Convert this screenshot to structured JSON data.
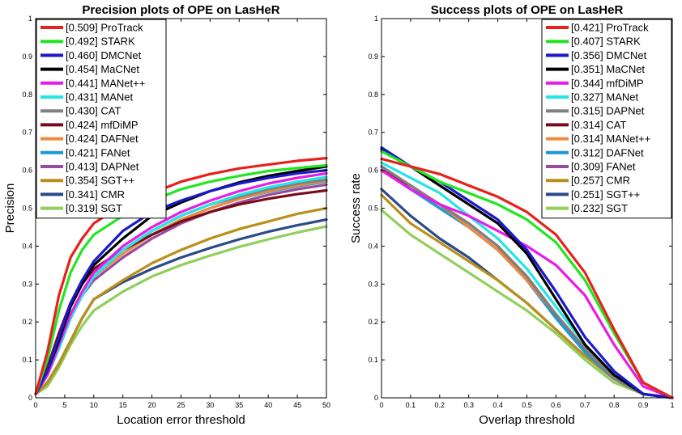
{
  "chart_data": [
    {
      "type": "line",
      "title": "Precision plots of OPE on LasHeR",
      "xlabel": "Location error threshold",
      "ylabel": "Precision",
      "xlim": [
        0,
        50
      ],
      "ylim": [
        0,
        1
      ],
      "legend_position": "top-left",
      "x_ticks": [
        "0",
        "5",
        "10",
        "15",
        "20",
        "25",
        "30",
        "35",
        "40",
        "45",
        "50"
      ],
      "y_ticks": [
        "0",
        "0.1",
        "0.2",
        "0.3",
        "0.4",
        "0.5",
        "0.6",
        "0.7",
        "0.8",
        "0.9",
        "1"
      ],
      "x": [
        0,
        2,
        4,
        6,
        8,
        10,
        15,
        20,
        25,
        30,
        35,
        40,
        45,
        50
      ],
      "series": [
        {
          "name": "[0.509] ProTrack",
          "color": "#e8211c",
          "values": [
            0.01,
            0.12,
            0.27,
            0.37,
            0.42,
            0.46,
            0.51,
            0.54,
            0.57,
            0.59,
            0.605,
            0.615,
            0.625,
            0.632
          ]
        },
        {
          "name": "[0.492] STARK",
          "color": "#22e622",
          "values": [
            0.01,
            0.1,
            0.23,
            0.33,
            0.39,
            0.43,
            0.48,
            0.52,
            0.55,
            0.57,
            0.585,
            0.598,
            0.606,
            0.613
          ]
        },
        {
          "name": "[0.460] DMCNet",
          "color": "#1a1acc",
          "values": [
            0.01,
            0.07,
            0.16,
            0.25,
            0.31,
            0.36,
            0.44,
            0.49,
            0.52,
            0.545,
            0.565,
            0.58,
            0.592,
            0.6
          ]
        },
        {
          "name": "[0.454] MaCNet",
          "color": "#000000",
          "values": [
            0.01,
            0.07,
            0.15,
            0.24,
            0.3,
            0.35,
            0.42,
            0.48,
            0.515,
            0.545,
            0.568,
            0.585,
            0.598,
            0.61
          ]
        },
        {
          "name": "[0.441] MANet++",
          "color": "#e81ce8",
          "values": [
            0.01,
            0.06,
            0.14,
            0.22,
            0.28,
            0.33,
            0.4,
            0.45,
            0.49,
            0.52,
            0.545,
            0.565,
            0.58,
            0.592
          ]
        },
        {
          "name": "[0.431] MANet",
          "color": "#22e6e6",
          "values": [
            0.01,
            0.06,
            0.13,
            0.21,
            0.27,
            0.32,
            0.39,
            0.44,
            0.48,
            0.51,
            0.535,
            0.555,
            0.57,
            0.582
          ]
        },
        {
          "name": "[0.430] CAT",
          "color": "#808080",
          "values": [
            0.01,
            0.06,
            0.13,
            0.21,
            0.27,
            0.32,
            0.39,
            0.44,
            0.48,
            0.51,
            0.53,
            0.55,
            0.565,
            0.575
          ]
        },
        {
          "name": "[0.424] mfDiMP",
          "color": "#7a0a1a",
          "values": [
            0.01,
            0.08,
            0.17,
            0.25,
            0.3,
            0.34,
            0.39,
            0.43,
            0.465,
            0.49,
            0.51,
            0.525,
            0.537,
            0.547
          ]
        },
        {
          "name": "[0.424] DAFNet",
          "color": "#f08a3c",
          "values": [
            0.01,
            0.06,
            0.13,
            0.21,
            0.27,
            0.32,
            0.38,
            0.43,
            0.47,
            0.5,
            0.525,
            0.545,
            0.56,
            0.572
          ]
        },
        {
          "name": "[0.421] FANet",
          "color": "#1a9ad6",
          "values": [
            0.01,
            0.06,
            0.13,
            0.21,
            0.27,
            0.32,
            0.38,
            0.43,
            0.47,
            0.5,
            0.525,
            0.543,
            0.558,
            0.57
          ]
        },
        {
          "name": "[0.413] DAPNet",
          "color": "#9a4a9a",
          "values": [
            0.01,
            0.06,
            0.13,
            0.21,
            0.27,
            0.31,
            0.37,
            0.42,
            0.46,
            0.49,
            0.515,
            0.535,
            0.55,
            0.562
          ]
        },
        {
          "name": "[0.354] SGT++",
          "color": "#b8901a",
          "values": [
            0.01,
            0.04,
            0.09,
            0.15,
            0.21,
            0.26,
            0.31,
            0.355,
            0.39,
            0.42,
            0.445,
            0.465,
            0.485,
            0.5
          ]
        },
        {
          "name": "[0.341] CMR",
          "color": "#2a4a8a",
          "values": [
            0.01,
            0.04,
            0.09,
            0.15,
            0.21,
            0.26,
            0.305,
            0.34,
            0.37,
            0.395,
            0.418,
            0.438,
            0.455,
            0.47
          ]
        },
        {
          "name": "[0.319] SGT",
          "color": "#8fcf5a",
          "values": [
            0.01,
            0.03,
            0.08,
            0.14,
            0.19,
            0.23,
            0.28,
            0.32,
            0.35,
            0.375,
            0.398,
            0.418,
            0.436,
            0.452
          ]
        }
      ]
    },
    {
      "type": "line",
      "title": "Success plots of OPE on LasHeR",
      "xlabel": "Overlap threshold",
      "ylabel": "Success rate",
      "xlim": [
        0,
        1
      ],
      "ylim": [
        0,
        1
      ],
      "legend_position": "top-right",
      "x_ticks": [
        "0",
        "0.1",
        "0.2",
        "0.3",
        "0.4",
        "0.5",
        "0.6",
        "0.7",
        "0.8",
        "0.9",
        "1"
      ],
      "y_ticks": [
        "0",
        "0.1",
        "0.2",
        "0.3",
        "0.4",
        "0.5",
        "0.6",
        "0.7",
        "0.8",
        "0.9",
        "1"
      ],
      "x": [
        0,
        0.1,
        0.2,
        0.3,
        0.4,
        0.5,
        0.6,
        0.7,
        0.8,
        0.9,
        1.0
      ],
      "series": [
        {
          "name": "[0.421] ProTrack",
          "color": "#e8211c",
          "values": [
            0.63,
            0.61,
            0.59,
            0.56,
            0.53,
            0.49,
            0.43,
            0.33,
            0.18,
            0.04,
            0.0
          ]
        },
        {
          "name": "[0.407] STARK",
          "color": "#22e622",
          "values": [
            0.65,
            0.61,
            0.57,
            0.54,
            0.51,
            0.47,
            0.41,
            0.31,
            0.17,
            0.04,
            0.0
          ]
        },
        {
          "name": "[0.356] DMCNet",
          "color": "#1a1acc",
          "values": [
            0.66,
            0.61,
            0.57,
            0.52,
            0.47,
            0.39,
            0.28,
            0.16,
            0.07,
            0.01,
            0.0
          ]
        },
        {
          "name": "[0.351] MaCNet",
          "color": "#000000",
          "values": [
            0.655,
            0.61,
            0.56,
            0.51,
            0.46,
            0.38,
            0.26,
            0.14,
            0.06,
            0.01,
            0.0
          ]
        },
        {
          "name": "[0.344] mfDiMP",
          "color": "#e81ce8",
          "values": [
            0.6,
            0.55,
            0.51,
            0.48,
            0.44,
            0.4,
            0.35,
            0.27,
            0.14,
            0.03,
            0.0
          ]
        },
        {
          "name": "[0.327] MANet",
          "color": "#22e6e6",
          "values": [
            0.62,
            0.58,
            0.54,
            0.48,
            0.42,
            0.34,
            0.24,
            0.14,
            0.06,
            0.01,
            0.0
          ]
        },
        {
          "name": "[0.315] DAPNet",
          "color": "#808080",
          "values": [
            0.61,
            0.56,
            0.51,
            0.46,
            0.4,
            0.32,
            0.22,
            0.13,
            0.05,
            0.01,
            0.0
          ]
        },
        {
          "name": "[0.314] CAT",
          "color": "#7a0a1a",
          "values": [
            0.6,
            0.56,
            0.51,
            0.46,
            0.4,
            0.32,
            0.22,
            0.13,
            0.05,
            0.01,
            0.0
          ]
        },
        {
          "name": "[0.314] MANet++",
          "color": "#f08a3c",
          "values": [
            0.61,
            0.56,
            0.51,
            0.45,
            0.39,
            0.31,
            0.22,
            0.13,
            0.05,
            0.01,
            0.0
          ]
        },
        {
          "name": "[0.312] DAFNet",
          "color": "#1a9ad6",
          "values": [
            0.61,
            0.55,
            0.5,
            0.45,
            0.39,
            0.31,
            0.21,
            0.12,
            0.05,
            0.01,
            0.0
          ]
        },
        {
          "name": "[0.309] FANet",
          "color": "#9a4a9a",
          "values": [
            0.6,
            0.55,
            0.5,
            0.45,
            0.39,
            0.31,
            0.21,
            0.12,
            0.05,
            0.01,
            0.0
          ]
        },
        {
          "name": "[0.257] CMR",
          "color": "#b8901a",
          "values": [
            0.535,
            0.46,
            0.41,
            0.36,
            0.31,
            0.25,
            0.18,
            0.11,
            0.05,
            0.01,
            0.0
          ]
        },
        {
          "name": "[0.251] SGT++",
          "color": "#2a4a8a",
          "values": [
            0.55,
            0.48,
            0.42,
            0.37,
            0.31,
            0.25,
            0.18,
            0.11,
            0.05,
            0.01,
            0.0
          ]
        },
        {
          "name": "[0.232] SGT",
          "color": "#8fcf5a",
          "values": [
            0.495,
            0.43,
            0.38,
            0.33,
            0.28,
            0.23,
            0.17,
            0.1,
            0.04,
            0.01,
            0.0
          ]
        }
      ]
    }
  ]
}
